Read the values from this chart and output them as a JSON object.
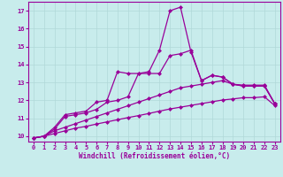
{
  "xlabel": "Windchill (Refroidissement éolien,°C)",
  "background_color": "#c8ecec",
  "line_color": "#990099",
  "grid_color": "#b0d8d8",
  "xlim": [
    -0.5,
    23.5
  ],
  "ylim": [
    9.7,
    17.5
  ],
  "yticks": [
    10,
    11,
    12,
    13,
    14,
    15,
    16,
    17
  ],
  "xticks": [
    0,
    1,
    2,
    3,
    4,
    5,
    6,
    7,
    8,
    9,
    10,
    11,
    12,
    13,
    14,
    15,
    16,
    17,
    18,
    19,
    20,
    21,
    22,
    23
  ],
  "line1_x": [
    0,
    1,
    2,
    3,
    4,
    5,
    6,
    7,
    8,
    9,
    10,
    11,
    12,
    13,
    14,
    15,
    16,
    17,
    18,
    19,
    20,
    21,
    22,
    23
  ],
  "line1_y": [
    9.9,
    10.0,
    10.5,
    11.2,
    11.3,
    11.4,
    11.9,
    12.0,
    13.6,
    13.5,
    13.5,
    13.6,
    14.8,
    17.0,
    17.2,
    14.7,
    13.1,
    13.4,
    13.3,
    12.9,
    12.8,
    12.8,
    12.8,
    11.8
  ],
  "line2_x": [
    0,
    1,
    2,
    3,
    4,
    5,
    6,
    7,
    8,
    9,
    10,
    11,
    12,
    13,
    14,
    15,
    16,
    17,
    18,
    19,
    20,
    21,
    22,
    23
  ],
  "line2_y": [
    9.9,
    10.0,
    10.4,
    11.1,
    11.2,
    11.3,
    11.5,
    11.9,
    12.0,
    12.2,
    13.5,
    13.5,
    13.5,
    14.5,
    14.6,
    14.8,
    13.1,
    13.4,
    13.3,
    12.9,
    12.8,
    12.8,
    12.8,
    11.8
  ],
  "line3_x": [
    0,
    1,
    2,
    3,
    4,
    5,
    6,
    7,
    8,
    9,
    10,
    11,
    12,
    13,
    14,
    15,
    16,
    17,
    18,
    19,
    20,
    21,
    22,
    23
  ],
  "line3_y": [
    9.9,
    10.0,
    10.3,
    10.5,
    10.7,
    10.9,
    11.1,
    11.3,
    11.5,
    11.7,
    11.9,
    12.1,
    12.3,
    12.5,
    12.7,
    12.8,
    12.9,
    13.0,
    13.1,
    12.9,
    12.85,
    12.85,
    12.85,
    11.8
  ],
  "line4_x": [
    0,
    1,
    2,
    3,
    4,
    5,
    6,
    7,
    8,
    9,
    10,
    11,
    12,
    13,
    14,
    15,
    16,
    17,
    18,
    19,
    20,
    21,
    22,
    23
  ],
  "line4_y": [
    9.9,
    10.0,
    10.15,
    10.3,
    10.45,
    10.55,
    10.68,
    10.8,
    10.92,
    11.04,
    11.15,
    11.27,
    11.4,
    11.52,
    11.62,
    11.72,
    11.82,
    11.92,
    12.02,
    12.08,
    12.15,
    12.15,
    12.2,
    11.7
  ]
}
